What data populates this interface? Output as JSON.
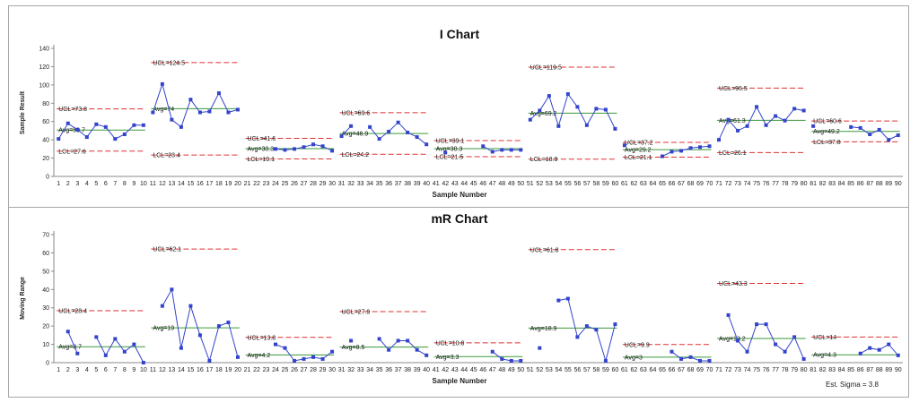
{
  "footer": {
    "sigma": "Est. Sigma = 3.8"
  },
  "chart_data": [
    {
      "type": "line",
      "title": "I Chart",
      "xlabel": "Sample Number",
      "ylabel": "Sample Result",
      "ylim": [
        0,
        140
      ],
      "yticks": [
        0,
        20,
        40,
        60,
        80,
        100,
        120,
        140
      ],
      "x": [
        1,
        2,
        3,
        4,
        5,
        6,
        7,
        8,
        9,
        10,
        11,
        12,
        13,
        14,
        15,
        16,
        17,
        18,
        19,
        20,
        21,
        22,
        23,
        24,
        25,
        26,
        27,
        28,
        29,
        30,
        31,
        32,
        33,
        34,
        35,
        36,
        37,
        38,
        39,
        40,
        41,
        42,
        43,
        44,
        45,
        46,
        47,
        48,
        49,
        50,
        51,
        52,
        53,
        54,
        55,
        56,
        57,
        58,
        59,
        60,
        61,
        62,
        63,
        64,
        65,
        66,
        67,
        68,
        69,
        70,
        71,
        72,
        73,
        74,
        75,
        76,
        77,
        78,
        79,
        80,
        81,
        82,
        83,
        84,
        85,
        86,
        87,
        88,
        89,
        90
      ],
      "colors": {
        "data": "#3344cc",
        "limit": "#e03030",
        "avg": "#3a9a3a"
      },
      "segments": [
        {
          "start": 1,
          "values": [
            41,
            58,
            51,
            43,
            57,
            54,
            41,
            46,
            56,
            56
          ],
          "ucl": 73.8,
          "avg": 50.7,
          "lcl": 27.6,
          "ucl_label": "UCL=73.8",
          "avg_label": "Avg=50.7",
          "lcl_label": "LCL=27.6"
        },
        {
          "start": 11,
          "values": [
            70,
            101,
            62,
            54,
            84,
            70,
            71,
            91,
            70,
            73
          ],
          "ucl": 124.5,
          "avg": 74,
          "lcl": 23.4,
          "ucl_label": "UCL=124.5",
          "avg_label": "Avg=74",
          "lcl_label": "LCL=23.4"
        },
        {
          "start": 21,
          "values": [
            null,
            null,
            null,
            30,
            29,
            30,
            32,
            35,
            33,
            28
          ],
          "ucl": 41.6,
          "avg": 30.3,
          "lcl": 19.1,
          "ucl_label": "UCL=41.6",
          "avg_label": "Avg=30.3",
          "lcl_label": "LCL=19.1"
        },
        {
          "start": 31,
          "values": [
            44,
            55,
            null,
            54,
            41,
            49,
            59,
            48,
            43,
            35
          ],
          "ucl": 69.6,
          "avg": 46.9,
          "lcl": 24.2,
          "ucl_label": "UCL=69.6",
          "avg_label": "Avg=46.9",
          "lcl_label": "LCL=24.2"
        },
        {
          "start": 41,
          "values": [
            null,
            26,
            null,
            null,
            null,
            33,
            27,
            29,
            29,
            29
          ],
          "ucl": 39.1,
          "avg": 30.3,
          "lcl": 21.5,
          "ucl_label": "UCL=39.1",
          "avg_label": "Avg=30.3",
          "lcl_label": "LCL=21.5"
        },
        {
          "start": 51,
          "values": [
            62,
            72,
            88,
            55,
            90,
            76,
            56,
            74,
            73,
            52
          ],
          "ucl": 119.5,
          "avg": 69.2,
          "lcl": 18.9,
          "ucl_label": "UCL=119.5",
          "avg_label": "Avg=69.2",
          "lcl_label": "LCL=18.9"
        },
        {
          "start": 61,
          "values": [
            34,
            null,
            null,
            null,
            22,
            27,
            28,
            31,
            32,
            33
          ],
          "ucl": 37.2,
          "avg": 29.2,
          "lcl": 21.1,
          "ucl_label": "UCL=37.2",
          "avg_label": "Avg=29.2",
          "lcl_label": "LCL=21.1"
        },
        {
          "start": 71,
          "values": [
            40,
            62,
            50,
            55,
            76,
            56,
            66,
            61,
            74,
            72
          ],
          "ucl": 96.5,
          "avg": 61.3,
          "lcl": 26.1,
          "ucl_label": "UCL=96.5",
          "avg_label": "Avg=61.3",
          "lcl_label": "LCL=26.1"
        },
        {
          "start": 81,
          "values": [
            55,
            null,
            null,
            null,
            54,
            53,
            46,
            51,
            40,
            45
          ],
          "ucl": 60.6,
          "avg": 49.2,
          "lcl": 37.8,
          "ucl_label": "UCL=60.6",
          "avg_label": "Avg=49.2",
          "lcl_label": "LCL=37.8"
        }
      ]
    },
    {
      "type": "line",
      "title": "mR Chart",
      "xlabel": "Sample Number",
      "ylabel": "Moving Range",
      "ylim": [
        0,
        70
      ],
      "yticks": [
        0,
        10,
        20,
        30,
        40,
        50,
        60,
        70
      ],
      "x": [
        1,
        2,
        3,
        4,
        5,
        6,
        7,
        8,
        9,
        10,
        11,
        12,
        13,
        14,
        15,
        16,
        17,
        18,
        19,
        20,
        21,
        22,
        23,
        24,
        25,
        26,
        27,
        28,
        29,
        30,
        31,
        32,
        33,
        34,
        35,
        36,
        37,
        38,
        39,
        40,
        41,
        42,
        43,
        44,
        45,
        46,
        47,
        48,
        49,
        50,
        51,
        52,
        53,
        54,
        55,
        56,
        57,
        58,
        59,
        60,
        61,
        62,
        63,
        64,
        65,
        66,
        67,
        68,
        69,
        70,
        71,
        72,
        73,
        74,
        75,
        76,
        77,
        78,
        79,
        80,
        81,
        82,
        83,
        84,
        85,
        86,
        87,
        88,
        89,
        90
      ],
      "colors": {
        "data": "#3344cc",
        "limit": "#e03030",
        "avg": "#3a9a3a"
      },
      "segments": [
        {
          "start": 1,
          "values": [
            null,
            17,
            5,
            null,
            14,
            4,
            13,
            6,
            10,
            0
          ],
          "ucl": 28.4,
          "avg": 8.7,
          "ucl_label": "UCL=28.4",
          "avg_label": "Avg=8.7"
        },
        {
          "start": 11,
          "values": [
            null,
            31,
            40,
            8,
            31,
            15,
            1,
            20,
            22,
            3
          ],
          "ucl": 62.1,
          "avg": 19,
          "ucl_label": "UCL=62.1",
          "avg_label": "Avg=19"
        },
        {
          "start": 21,
          "values": [
            null,
            null,
            null,
            10,
            8,
            1,
            2,
            3,
            2,
            6
          ],
          "ucl": 13.8,
          "avg": 4.2,
          "ucl_label": "UCL=13.8",
          "avg_label": "Avg=4.2"
        },
        {
          "start": 31,
          "values": [
            null,
            12,
            null,
            null,
            13,
            7,
            12,
            12,
            7,
            4
          ],
          "ucl": 27.9,
          "avg": 8.5,
          "ucl_label": "UCL=27.9",
          "avg_label": "Avg=8.5"
        },
        {
          "start": 41,
          "values": [
            null,
            null,
            null,
            null,
            null,
            null,
            6,
            2,
            1,
            1
          ],
          "ucl": 10.8,
          "avg": 3.3,
          "ucl_label": "UCL=10.8",
          "avg_label": "Avg=3.3"
        },
        {
          "start": 51,
          "values": [
            null,
            8,
            null,
            34,
            35,
            14,
            20,
            18,
            1,
            21
          ],
          "ucl": 61.8,
          "avg": 18.9,
          "ucl_label": "UCL=61.8",
          "avg_label": "Avg=18.9"
        },
        {
          "start": 61,
          "values": [
            null,
            null,
            null,
            null,
            null,
            6,
            2,
            3,
            1,
            1
          ],
          "ucl": 9.9,
          "avg": 3,
          "ucl_label": "UCL=9.9",
          "avg_label": "Avg=3"
        },
        {
          "start": 71,
          "values": [
            null,
            26,
            12,
            6,
            21,
            21,
            10,
            6,
            14,
            2
          ],
          "ucl": 43.3,
          "avg": 13.2,
          "ucl_label": "UCL=43.3",
          "avg_label": "Avg=13.2"
        },
        {
          "start": 81,
          "values": [
            null,
            null,
            null,
            null,
            null,
            5,
            8,
            7,
            10,
            4
          ],
          "ucl": 14,
          "avg": 4.3,
          "ucl_label": "UCL=14",
          "avg_label": "Avg=4.3"
        }
      ]
    }
  ]
}
